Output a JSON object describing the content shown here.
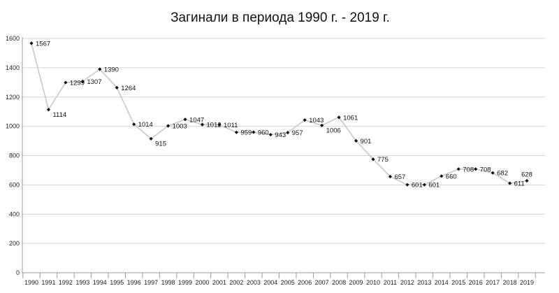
{
  "chart_data": {
    "type": "line",
    "title": "Загинали в периода 1990 г. - 2019 г.",
    "xlabel": "",
    "ylabel": "",
    "ylim": [
      0,
      1600
    ],
    "yticks": [
      0,
      200,
      400,
      600,
      800,
      1000,
      1200,
      1400,
      1600
    ],
    "x": [
      "1990",
      "1991",
      "1992",
      "1993",
      "1994",
      "1995",
      "1996",
      "1997",
      "1998",
      "1999",
      "2000",
      "2001",
      "2002",
      "2003",
      "2004",
      "2005",
      "2006",
      "2007",
      "2008",
      "2009",
      "2010",
      "2011",
      "2012",
      "2013",
      "2014",
      "2015",
      "2016",
      "2017",
      "2018",
      "2019"
    ],
    "series": [
      {
        "values": [
          1567,
          1114,
          1299,
          1307,
          1390,
          1264,
          1014,
          915,
          1003,
          1047,
          1012,
          1011,
          959,
          960,
          943,
          957,
          1043,
          1006,
          1061,
          901,
          775,
          657,
          601,
          601,
          660,
          708,
          708,
          682,
          611,
          628
        ]
      }
    ],
    "grid": "horizontal",
    "legend": "none",
    "line_color": "#c8c8c8",
    "marker_color": "#111111",
    "grid_color": "#d4d4d4"
  }
}
